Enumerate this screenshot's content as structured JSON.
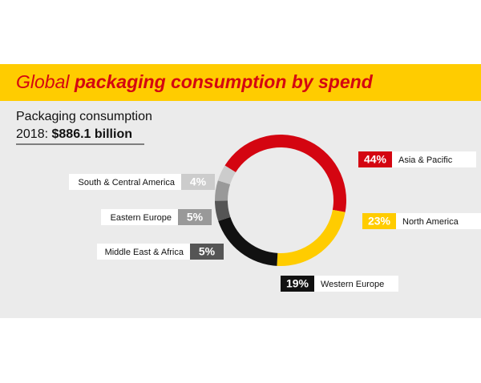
{
  "chart_data": {
    "type": "donut",
    "title": {
      "regular": "Global",
      "bold": "packaging consumption by spend"
    },
    "subtitle": {
      "line1": "Packaging consumption",
      "prefix": "2018:",
      "total": "$886.1 billion"
    },
    "categories": [
      "Asia & Pacific",
      "North America",
      "Western Europe",
      "Middle East & Africa",
      "Eastern Europe",
      "South & Central America"
    ],
    "values": [
      44,
      23,
      19,
      5,
      5,
      4
    ],
    "value_labels": [
      "44%",
      "23%",
      "19%",
      "5%",
      "5%",
      "4%"
    ],
    "colors": [
      "#d40511",
      "#ffcc00",
      "#111111",
      "#555555",
      "#999999",
      "#cccccc"
    ]
  }
}
